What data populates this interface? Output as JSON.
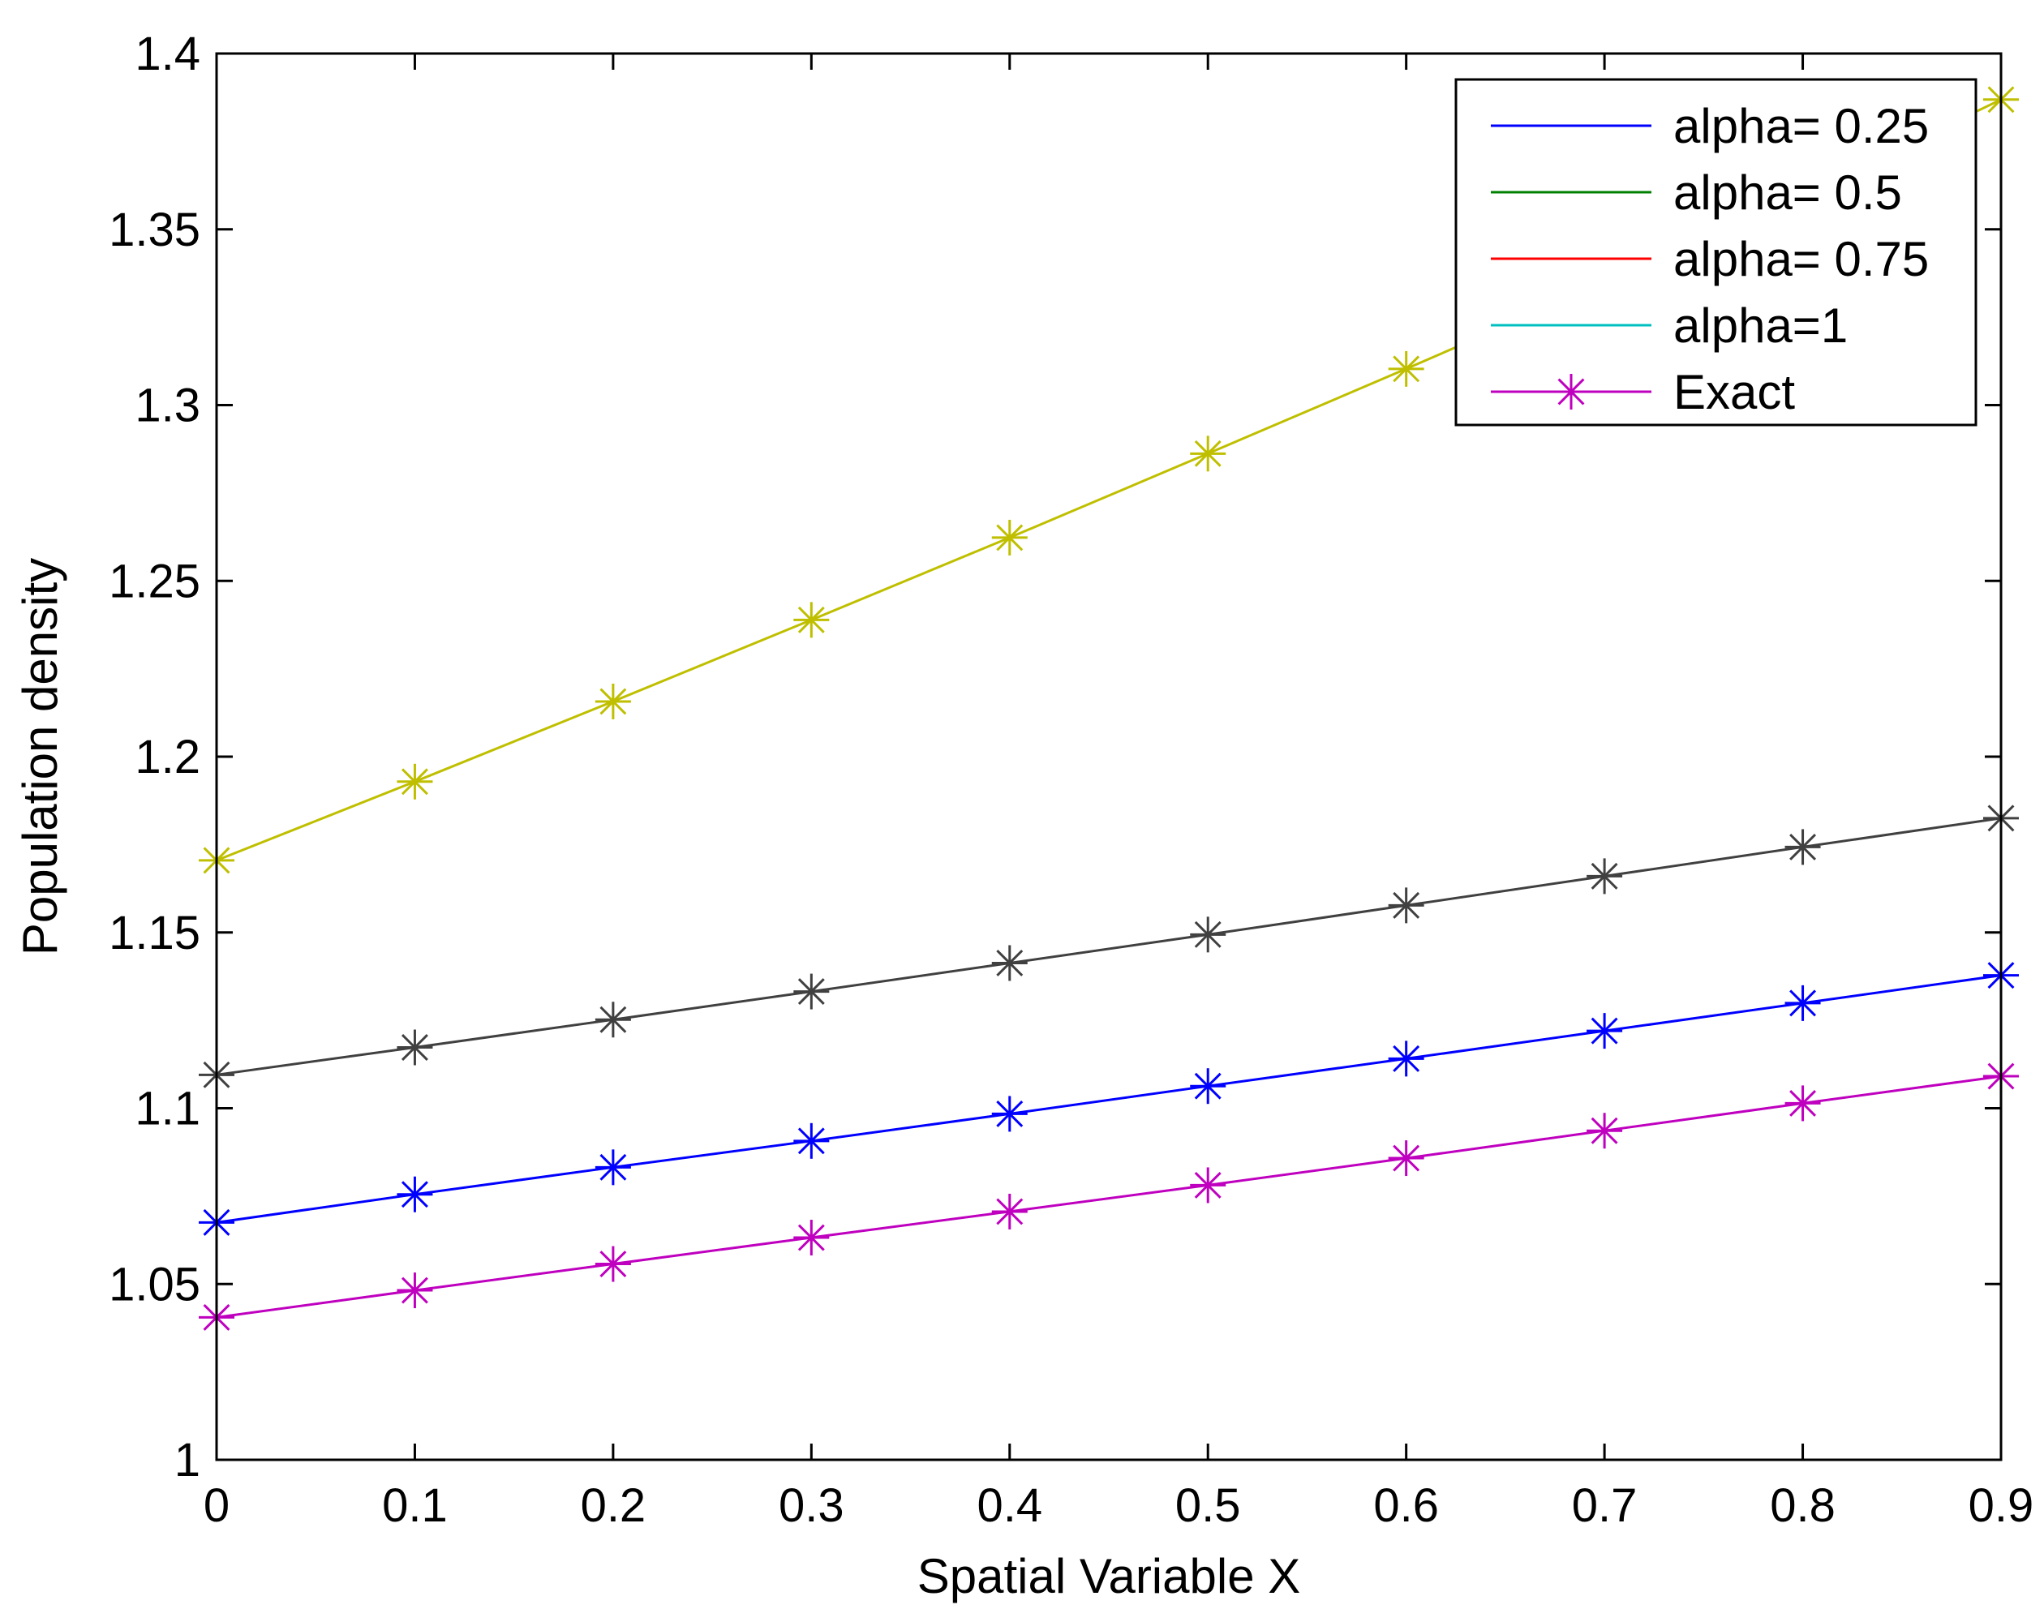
{
  "chart_data": {
    "type": "line",
    "xlabel": "Spatial Variable X",
    "ylabel": "Population density",
    "xlim": [
      0,
      0.9
    ],
    "ylim": [
      1,
      1.4
    ],
    "x_ticks": [
      "0",
      "0.1",
      "0.2",
      "0.3",
      "0.4",
      "0.5",
      "0.6",
      "0.7",
      "0.8",
      "0.9"
    ],
    "y_ticks": [
      "1",
      "1.05",
      "1.1",
      "1.15",
      "1.2",
      "1.25",
      "1.3",
      "1.35",
      "1.4"
    ],
    "x": [
      0,
      0.1,
      0.2,
      0.3,
      0.4,
      0.5,
      0.6,
      0.7,
      0.8,
      0.9
    ],
    "grid": false,
    "legend_position": "top-right",
    "legend": [
      {
        "label": "alpha= 0.25",
        "color": "#0000ff",
        "marker": "none"
      },
      {
        "label": "alpha= 0.5",
        "color": "#008000",
        "marker": "none"
      },
      {
        "label": "alpha= 0.75",
        "color": "#ff0000",
        "marker": "none"
      },
      {
        "label": "alpha=1",
        "color": "#00bfbf",
        "marker": "none"
      },
      {
        "label": "Exact",
        "color": "#bf00bf",
        "marker": "asterisk"
      }
    ],
    "series": [
      {
        "color": "#bfbf00",
        "marker": "asterisk",
        "values": [
          1.1705,
          1.1929,
          1.2157,
          1.2389,
          1.2623,
          1.2862,
          1.3103,
          1.3348,
          1.3597,
          1.3869
        ]
      },
      {
        "color": "#404040",
        "marker": "asterisk",
        "values": [
          1.1095,
          1.1173,
          1.1252,
          1.1332,
          1.1413,
          1.1494,
          1.1577,
          1.166,
          1.1743,
          1.1825
        ]
      },
      {
        "color": "#0000ff",
        "marker": "asterisk",
        "values": [
          1.0675,
          1.0755,
          1.0832,
          1.0907,
          1.0984,
          1.1063,
          1.1141,
          1.122,
          1.1299,
          1.1378
        ]
      },
      {
        "color": "#bf00bf",
        "marker": "asterisk",
        "values": [
          1.0405,
          1.0482,
          1.0557,
          1.0632,
          1.0706,
          1.0781,
          1.0858,
          1.0936,
          1.1014,
          1.1091
        ]
      }
    ]
  }
}
